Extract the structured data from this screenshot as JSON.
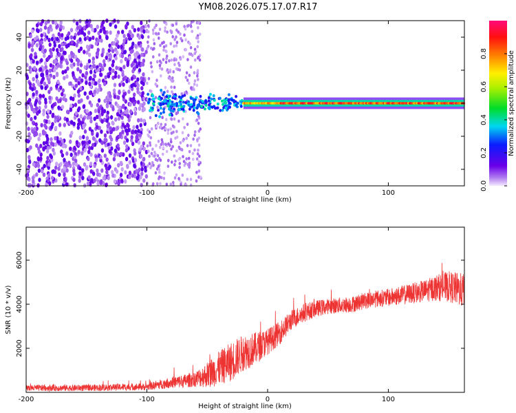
{
  "page_title": "YM08.2026.075.17.07.R17",
  "colors": {
    "snr_line": "#ee3333",
    "axis": "#000000",
    "background": "#ffffff"
  },
  "chart_data": [
    {
      "type": "heatmap",
      "title": "YM08.2026.075.17.07.R17",
      "xlabel": "Height of straight line (km)",
      "ylabel": "Frequency (Hz)",
      "xlim": [
        -200,
        163
      ],
      "ylim": [
        -50,
        50
      ],
      "xticks": [
        -200,
        -100,
        0,
        100
      ],
      "xtick_labels": [
        "-200",
        "-100",
        "0",
        "100"
      ],
      "yticks": [
        -40,
        -20,
        0,
        20,
        40
      ],
      "ytick_labels": [
        "-40",
        "-20",
        "0",
        "20",
        "40"
      ],
      "colorbar": {
        "label": "Normalized spectral amplitude",
        "range": [
          0,
          1
        ],
        "ticks": [
          0.0,
          0.2,
          0.4,
          0.6,
          0.8
        ],
        "tick_labels": [
          "0.0",
          "0.2",
          "0.4",
          "0.6",
          "0.8"
        ],
        "colormap": "rainbow (purple-blue-cyan-green-yellow-red-magenta)"
      },
      "description_regions": [
        {
          "x_range": [
            -200,
            -100
          ],
          "y_range": [
            -50,
            50
          ],
          "amplitude": [
            0.05,
            0.25
          ],
          "pattern": "diffuse scattered noise"
        },
        {
          "x_range": [
            -100,
            -55
          ],
          "y_range": [
            -50,
            50
          ],
          "amplitude": [
            0.0,
            0.08
          ],
          "pattern": "faint noise"
        },
        {
          "x_range": [
            -100,
            -20
          ],
          "y_range": [
            -5,
            5
          ],
          "amplitude": [
            0.2,
            0.5
          ],
          "pattern": "broadened signal"
        },
        {
          "x_range": [
            -20,
            163
          ],
          "y_range": [
            -1.5,
            1.5
          ],
          "amplitude": [
            0.5,
            1.0
          ],
          "pattern": "narrow tone near 0 Hz"
        }
      ]
    },
    {
      "type": "line",
      "xlabel": "Height of straight line (km)",
      "ylabel": "SNR (10 * v/v)",
      "xlim": [
        -200,
        163
      ],
      "ylim": [
        0,
        7500
      ],
      "xticks": [
        -200,
        -100,
        0,
        100
      ],
      "xtick_labels": [
        "-200",
        "-100",
        "0",
        "100"
      ],
      "yticks": [
        2000,
        4000,
        6000
      ],
      "ytick_labels": [
        "2000",
        "4000",
        "6000"
      ],
      "series": [
        {
          "name": "SNR",
          "color": "#ee3333",
          "trend_x": [
            -200,
            -150,
            -120,
            -100,
            -90,
            -80,
            -70,
            -60,
            -50,
            -40,
            -30,
            -20,
            -10,
            0,
            10,
            20,
            30,
            40,
            50,
            60,
            70,
            80,
            90,
            100,
            110,
            120,
            130,
            140,
            150,
            163
          ],
          "trend_y": [
            200,
            200,
            240,
            250,
            350,
            450,
            500,
            600,
            800,
            1100,
            1400,
            1800,
            2000,
            2300,
            2700,
            3300,
            3600,
            3800,
            3900,
            3950,
            4000,
            4150,
            4250,
            4300,
            4400,
            4500,
            4600,
            4750,
            4800,
            4600
          ],
          "noise_x": [
            -200,
            -100,
            -60,
            -45,
            -30,
            -15,
            0,
            20,
            50,
            100,
            130,
            150,
            163
          ],
          "noise_y": [
            140,
            160,
            350,
            700,
            900,
            800,
            600,
            450,
            350,
            400,
            500,
            700,
            800
          ]
        }
      ]
    }
  ]
}
